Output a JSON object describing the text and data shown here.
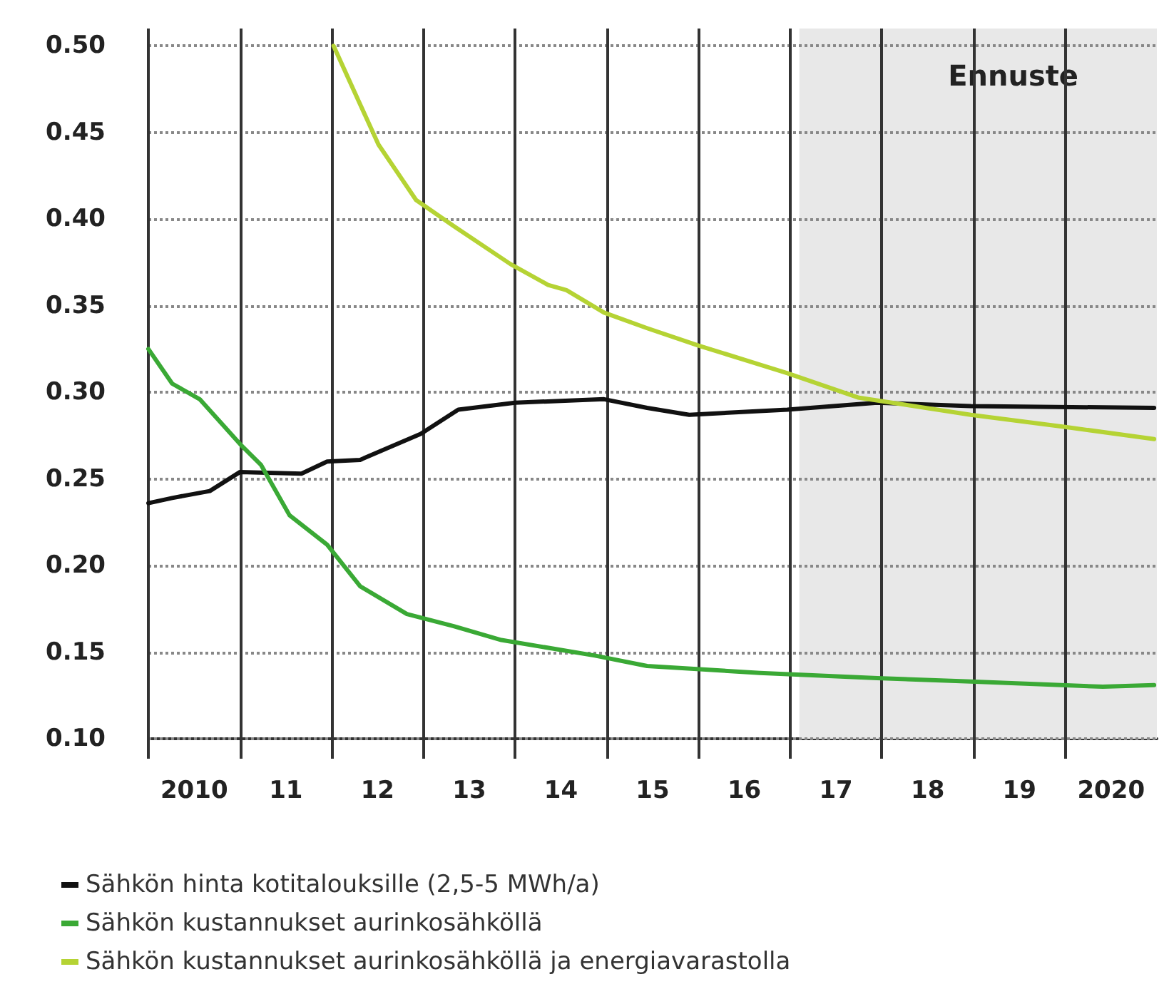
{
  "chart_data": {
    "type": "line",
    "xlim": [
      2009.5,
      2020.5
    ],
    "ylim": [
      0.1,
      0.51
    ],
    "xticks": [
      {
        "value": 2009.5,
        "label": null
      },
      {
        "value": 2010,
        "label": "2010"
      },
      {
        "value": 2010.5,
        "label": null
      },
      {
        "value": 2011,
        "label": "11"
      },
      {
        "value": 2011.5,
        "label": null
      },
      {
        "value": 2012,
        "label": "12"
      },
      {
        "value": 2012.5,
        "label": null
      },
      {
        "value": 2013,
        "label": "13"
      },
      {
        "value": 2013.5,
        "label": null
      },
      {
        "value": 2014,
        "label": "14"
      },
      {
        "value": 2014.5,
        "label": null
      },
      {
        "value": 2015,
        "label": "15"
      },
      {
        "value": 2015.5,
        "label": null
      },
      {
        "value": 2016,
        "label": "16"
      },
      {
        "value": 2016.5,
        "label": null
      },
      {
        "value": 2017,
        "label": "17"
      },
      {
        "value": 2017.5,
        "label": null
      },
      {
        "value": 2018,
        "label": "18"
      },
      {
        "value": 2018.5,
        "label": null
      },
      {
        "value": 2019,
        "label": "19"
      },
      {
        "value": 2019.5,
        "label": null
      },
      {
        "value": 2020,
        "label": "2020"
      }
    ],
    "yticks": [
      {
        "value": 0.1,
        "label": "0.10"
      },
      {
        "value": 0.15,
        "label": "0.15"
      },
      {
        "value": 0.2,
        "label": "0.20"
      },
      {
        "value": 0.25,
        "label": "0.25"
      },
      {
        "value": 0.3,
        "label": "0.30"
      },
      {
        "value": 0.35,
        "label": "0.35"
      },
      {
        "value": 0.4,
        "label": "0.40"
      },
      {
        "value": 0.45,
        "label": "0.45"
      },
      {
        "value": 0.5,
        "label": "0.50"
      }
    ],
    "grid": true,
    "legend": "bottom",
    "marker": "none",
    "line_style": "solid",
    "bands": [
      {
        "axis": "x",
        "from": 2016.6,
        "to": 2020.5,
        "label": "Ennuste",
        "color": "#e8e8e8"
      }
    ],
    "series": [
      {
        "name": "Sähkön hinta kotitalouksille (2,5-5 MWh/a)",
        "color": "#111111",
        "x": [
          2009.5,
          2009.76,
          2010.17,
          2010.5,
          2011.17,
          2011.45,
          2011.81,
          2012.47,
          2012.88,
          2013.5,
          2014.47,
          2014.94,
          2015.4,
          2016.47,
          2017.45,
          2018.47,
          2020.47
        ],
        "values": [
          0.236,
          0.239,
          0.243,
          0.254,
          0.253,
          0.26,
          0.261,
          0.276,
          0.29,
          0.294,
          0.296,
          0.291,
          0.287,
          0.29,
          0.294,
          0.292,
          0.291
        ]
      },
      {
        "name": "Sähkön kustannukset aurinkosähköllä",
        "color": "#3aa935",
        "x": [
          2009.5,
          2009.76,
          2010.06,
          2010.52,
          2010.73,
          2011.04,
          2011.45,
          2011.81,
          2012.32,
          2012.83,
          2013.35,
          2014.37,
          2014.94,
          2016.17,
          2017.45,
          2018.47,
          2019.91,
          2020.47
        ],
        "values": [
          0.325,
          0.305,
          0.296,
          0.269,
          0.258,
          0.229,
          0.212,
          0.188,
          0.172,
          0.165,
          0.157,
          0.148,
          0.142,
          0.138,
          0.135,
          0.133,
          0.13,
          0.131
        ]
      },
      {
        "name": "Sähkön kustannukset aurinkosähköllä ja energiavarastolla",
        "color": "#b5d334",
        "x": [
          2011.52,
          2011.7,
          2012.01,
          2012.42,
          2012.83,
          2013.45,
          2013.86,
          2014.06,
          2014.47,
          2014.94,
          2015.5,
          2016.47,
          2017.24,
          2018.47,
          2019.5,
          2020.47
        ],
        "values": [
          0.5,
          0.479,
          0.443,
          0.411,
          0.396,
          0.374,
          0.362,
          0.359,
          0.346,
          0.337,
          0.327,
          0.311,
          0.297,
          0.287,
          0.28,
          0.273
        ]
      }
    ]
  }
}
